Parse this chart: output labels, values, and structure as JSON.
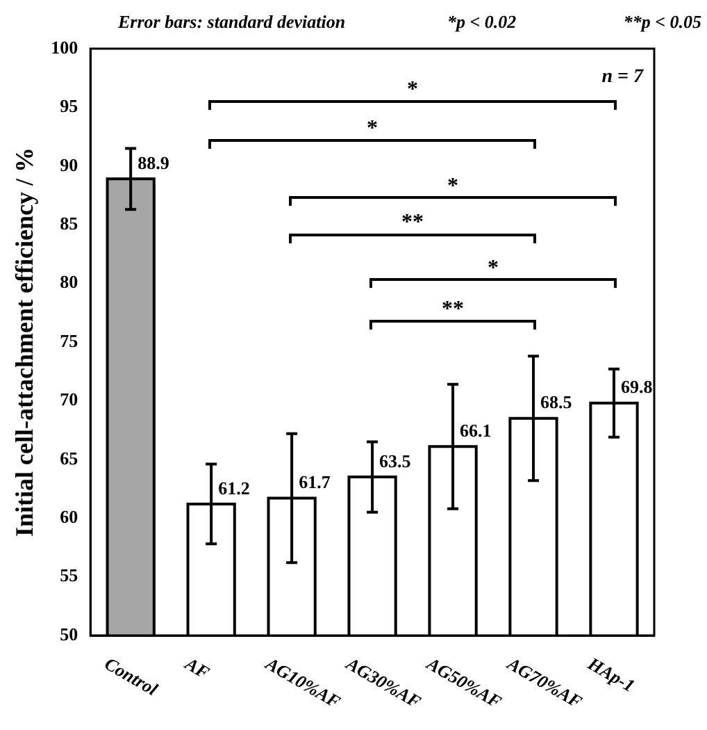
{
  "chart_data": {
    "type": "bar",
    "ylabel": "Initial cell-attachment efficiency / %",
    "categories": [
      "Control",
      "AF",
      "AG10%AF",
      "AG30%AF",
      "AG50%AF",
      "AG70%AF",
      "HAp-1"
    ],
    "values": [
      88.9,
      61.2,
      61.7,
      63.5,
      66.1,
      68.5,
      69.8
    ],
    "colors": [
      "#a6a6a6",
      "#ffffff",
      "#ffffff",
      "#ffffff",
      "#ffffff",
      "#ffffff",
      "#ffffff"
    ],
    "errors": [
      2.6,
      3.4,
      5.5,
      3.0,
      5.3,
      5.3,
      2.9
    ],
    "data_labels": true,
    "ylim": [
      50,
      100
    ],
    "yticks": [
      50,
      55,
      60,
      65,
      70,
      75,
      80,
      85,
      90,
      95,
      100
    ],
    "grid": false,
    "legend": false,
    "annotations": [
      "Error bars: standard deviation",
      "*p < 0.02",
      "**p < 0.05",
      "n = 7",
      "*",
      "*",
      "*",
      "**",
      "*",
      "**"
    ]
  }
}
